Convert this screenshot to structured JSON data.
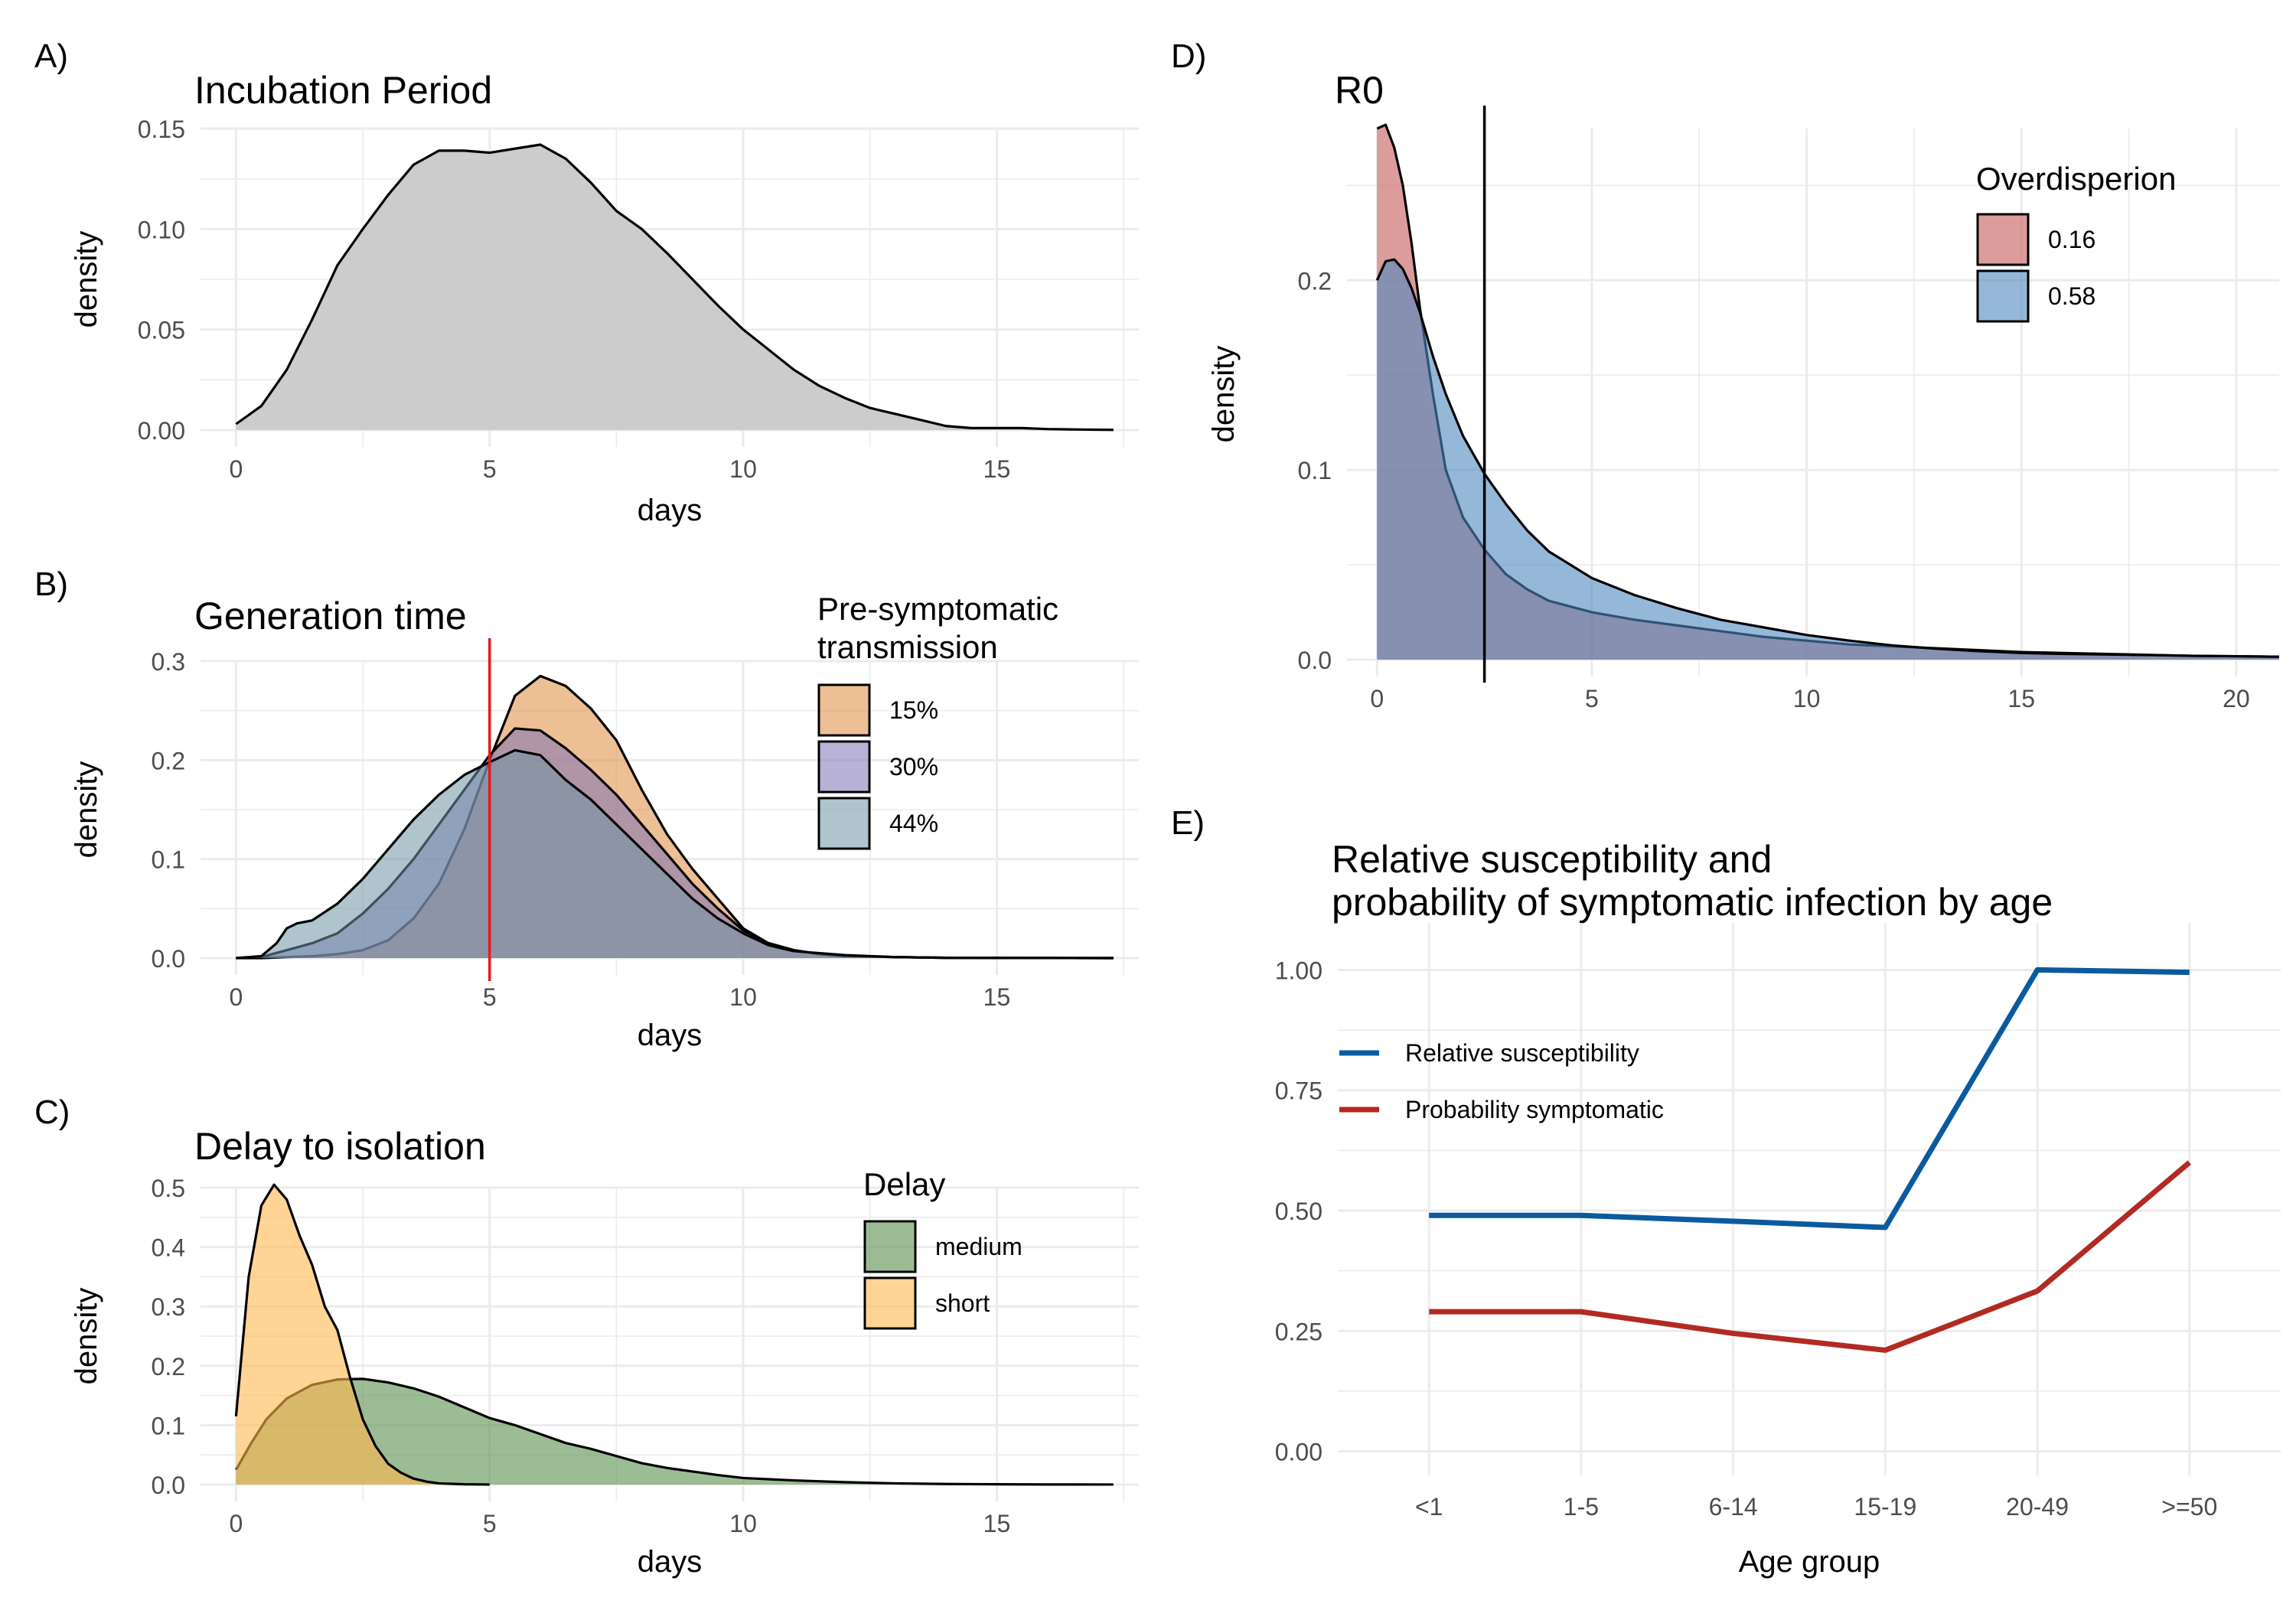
{
  "chart_data": [
    {
      "panel": "A)",
      "type": "area",
      "title": "Incubation Period",
      "xlabel": "days",
      "ylabel": "density",
      "xlim": [
        -0.7,
        17.8
      ],
      "ylim": [
        0,
        0.15
      ],
      "xticks": [
        0,
        5,
        10,
        15
      ],
      "yticks": [
        0,
        0.05,
        0.1,
        0.15
      ],
      "ytick_labels": [
        "0.00",
        "0.05",
        "0.10",
        "0.15"
      ],
      "grid": true,
      "series": [
        {
          "fill": "#cccccc",
          "x": [
            0,
            0.5,
            1,
            1.5,
            2,
            2.5,
            3,
            3.5,
            4,
            4.5,
            5,
            5.5,
            6,
            6.5,
            7,
            7.5,
            8,
            8.5,
            9,
            9.5,
            10,
            10.5,
            11,
            11.5,
            12,
            12.5,
            13,
            13.5,
            14,
            14.5,
            15,
            15.5,
            16,
            16.5,
            17.3
          ],
          "values": [
            0.003,
            0.012,
            0.03,
            0.055,
            0.082,
            0.1,
            0.117,
            0.132,
            0.139,
            0.139,
            0.138,
            0.14,
            0.142,
            0.135,
            0.123,
            0.109,
            0.1,
            0.088,
            0.075,
            0.062,
            0.05,
            0.04,
            0.03,
            0.022,
            0.016,
            0.011,
            0.008,
            0.005,
            0.002,
            0.001,
            0.001,
            0.001,
            0.0005,
            0.0003,
            0.0001
          ]
        }
      ]
    },
    {
      "panel": "B)",
      "type": "area",
      "title": "Generation time",
      "xlabel": "days",
      "ylabel": "density",
      "xlim": [
        -0.7,
        17.8
      ],
      "ylim": [
        0,
        0.3
      ],
      "xticks": [
        0,
        5,
        10,
        15
      ],
      "yticks": [
        0,
        0.1,
        0.2,
        0.3
      ],
      "ytick_labels": [
        "0.0",
        "0.1",
        "0.2",
        "0.3"
      ],
      "grid": true,
      "vline": {
        "x": 5,
        "color": "#e41a1c"
      },
      "legend": {
        "title": "Pre-symptomatic\ntransmission",
        "position": "top-right"
      },
      "series": [
        {
          "name": "15%",
          "fill": "#dd8a3e",
          "x": [
            0,
            0.5,
            1,
            1.5,
            2,
            2.5,
            3,
            3.5,
            4,
            4.5,
            5,
            5.5,
            6,
            6.5,
            7,
            7.5,
            8,
            8.5,
            9,
            9.5,
            10,
            10.5,
            11,
            11.5,
            12,
            13,
            14,
            15,
            16,
            17.3
          ],
          "values": [
            0,
            0,
            0.001,
            0.002,
            0.004,
            0.008,
            0.018,
            0.04,
            0.075,
            0.13,
            0.2,
            0.265,
            0.285,
            0.275,
            0.252,
            0.22,
            0.17,
            0.125,
            0.09,
            0.06,
            0.03,
            0.015,
            0.008,
            0.004,
            0.002,
            0.001,
            0.0003,
            0.0002,
            0.0001,
            0
          ]
        },
        {
          "name": "30%",
          "fill": "#7e73b5",
          "x": [
            0,
            0.5,
            1,
            1.5,
            2,
            2.5,
            3,
            3.5,
            4,
            4.5,
            5,
            5.5,
            6,
            6.5,
            7,
            7.5,
            8,
            8.5,
            9,
            9.5,
            10,
            10.5,
            11,
            11.5,
            12,
            13,
            14,
            15,
            16,
            17.3
          ],
          "values": [
            0,
            0.001,
            0.008,
            0.015,
            0.025,
            0.045,
            0.07,
            0.1,
            0.135,
            0.17,
            0.205,
            0.232,
            0.23,
            0.212,
            0.19,
            0.165,
            0.135,
            0.105,
            0.075,
            0.05,
            0.028,
            0.015,
            0.008,
            0.004,
            0.002,
            0.001,
            0.0003,
            0.0002,
            0.0001,
            0
          ]
        },
        {
          "name": "44%",
          "fill": "#6f93a5",
          "x": [
            0,
            0.5,
            0.8,
            1,
            1.2,
            1.5,
            2,
            2.5,
            3,
            3.5,
            4,
            4.5,
            5,
            5.5,
            6,
            6.5,
            7,
            7.5,
            8,
            8.5,
            9,
            9.5,
            10,
            10.5,
            11,
            12,
            13,
            14,
            15,
            16,
            17.3
          ],
          "values": [
            0,
            0.002,
            0.015,
            0.03,
            0.035,
            0.038,
            0.055,
            0.08,
            0.11,
            0.14,
            0.165,
            0.185,
            0.198,
            0.21,
            0.205,
            0.18,
            0.16,
            0.135,
            0.11,
            0.085,
            0.06,
            0.04,
            0.025,
            0.013,
            0.007,
            0.003,
            0.001,
            0.0003,
            0.0002,
            0.0001,
            0
          ]
        }
      ]
    },
    {
      "panel": "C)",
      "type": "area",
      "title": "Delay to isolation",
      "xlabel": "days",
      "ylabel": "density",
      "xlim": [
        -0.7,
        17.8
      ],
      "ylim": [
        0,
        0.5
      ],
      "xticks": [
        0,
        5,
        10,
        15
      ],
      "yticks": [
        0,
        0.1,
        0.2,
        0.3,
        0.4,
        0.5
      ],
      "ytick_labels": [
        "0.0",
        "0.1",
        "0.2",
        "0.3",
        "0.4",
        "0.5"
      ],
      "grid": true,
      "legend": {
        "title": "Delay",
        "position": "top-right"
      },
      "series": [
        {
          "name": "medium",
          "fill": "#5a8f4e",
          "x": [
            0,
            0.3,
            0.6,
            1,
            1.5,
            2,
            2.5,
            3,
            3.5,
            4,
            4.5,
            5,
            5.5,
            6,
            6.5,
            7,
            7.5,
            8,
            8.5,
            9,
            9.5,
            10,
            11,
            12,
            13,
            14,
            15,
            16,
            17.3
          ],
          "values": [
            0.025,
            0.07,
            0.11,
            0.145,
            0.168,
            0.177,
            0.178,
            0.172,
            0.162,
            0.148,
            0.13,
            0.112,
            0.1,
            0.085,
            0.07,
            0.06,
            0.048,
            0.036,
            0.028,
            0.022,
            0.016,
            0.011,
            0.007,
            0.004,
            0.002,
            0.001,
            0.0005,
            0.0002,
            0.0001
          ]
        },
        {
          "name": "short",
          "fill": "#ffb74d",
          "x": [
            0,
            0.25,
            0.5,
            0.75,
            1,
            1.25,
            1.5,
            1.75,
            2,
            2.25,
            2.5,
            2.75,
            3,
            3.25,
            3.5,
            3.75,
            4,
            4.5,
            5
          ],
          "values": [
            0.115,
            0.35,
            0.47,
            0.505,
            0.48,
            0.42,
            0.37,
            0.3,
            0.26,
            0.18,
            0.11,
            0.065,
            0.035,
            0.02,
            0.01,
            0.005,
            0.002,
            0.0005,
            0
          ]
        }
      ]
    },
    {
      "panel": "D)",
      "type": "area",
      "title": "R0",
      "xlabel": "",
      "ylabel": "density",
      "xlim": [
        -0.7,
        21
      ],
      "ylim": [
        0,
        0.28
      ],
      "xticks": [
        0,
        5,
        10,
        15,
        20
      ],
      "yticks": [
        0,
        0.1,
        0.2
      ],
      "ytick_labels": [
        "0.0",
        "0.1",
        "0.2"
      ],
      "grid": true,
      "vline": {
        "x": 2.5,
        "color": "#000000"
      },
      "legend": {
        "title": "Overdisperion",
        "position": "top-right"
      },
      "series": [
        {
          "name": "0.16",
          "fill": "#c45a5a",
          "x": [
            0,
            0.2,
            0.4,
            0.6,
            0.8,
            1,
            1.3,
            1.6,
            2,
            2.5,
            3,
            3.5,
            4,
            5,
            6,
            7,
            8,
            9,
            10,
            11,
            12,
            13,
            14,
            15,
            16,
            17,
            18,
            19,
            20,
            21
          ],
          "values": [
            0.28,
            0.282,
            0.27,
            0.25,
            0.22,
            0.185,
            0.14,
            0.1,
            0.075,
            0.058,
            0.045,
            0.037,
            0.031,
            0.025,
            0.021,
            0.018,
            0.015,
            0.012,
            0.01,
            0.008,
            0.007,
            0.006,
            0.005,
            0.004,
            0.0035,
            0.003,
            0.0025,
            0.002,
            0.0018,
            0.0015
          ]
        },
        {
          "name": "0.58",
          "fill": "#4e88bf",
          "x": [
            0,
            0.2,
            0.4,
            0.6,
            0.8,
            1,
            1.3,
            1.6,
            2,
            2.5,
            3,
            3.5,
            4,
            5,
            6,
            7,
            8,
            9,
            10,
            11,
            12,
            13,
            14,
            15,
            16,
            17,
            18,
            19,
            20,
            21
          ],
          "values": [
            0.2,
            0.21,
            0.211,
            0.206,
            0.196,
            0.183,
            0.16,
            0.14,
            0.118,
            0.098,
            0.082,
            0.068,
            0.057,
            0.043,
            0.034,
            0.027,
            0.021,
            0.017,
            0.013,
            0.01,
            0.0075,
            0.0058,
            0.0045,
            0.0035,
            0.003,
            0.0027,
            0.0024,
            0.002,
            0.0018,
            0.0015
          ]
        }
      ]
    },
    {
      "panel": "E)",
      "type": "line",
      "title": "Relative susceptibility and\nprobability of symptomatic infection by age",
      "xlabel": "Age group",
      "ylabel": "",
      "categories": [
        "<1",
        "1-5",
        "6-14",
        "15-19",
        "20-49",
        ">=50"
      ],
      "ylim": [
        0,
        1
      ],
      "yticks": [
        0,
        0.25,
        0.5,
        0.75,
        1
      ],
      "ytick_labels": [
        "0.00",
        "0.25",
        "0.50",
        "0.75",
        "1.00"
      ],
      "grid": true,
      "legend": {
        "position": "top-left"
      },
      "series": [
        {
          "name": "Relative susceptibility",
          "color": "#0a5aa0",
          "values": [
            0.49,
            0.49,
            0.478,
            0.465,
            1.0,
            0.995
          ]
        },
        {
          "name": "Probability symptomatic",
          "color": "#b22a22",
          "values": [
            0.29,
            0.29,
            0.245,
            0.21,
            0.333,
            0.6
          ]
        }
      ]
    }
  ]
}
